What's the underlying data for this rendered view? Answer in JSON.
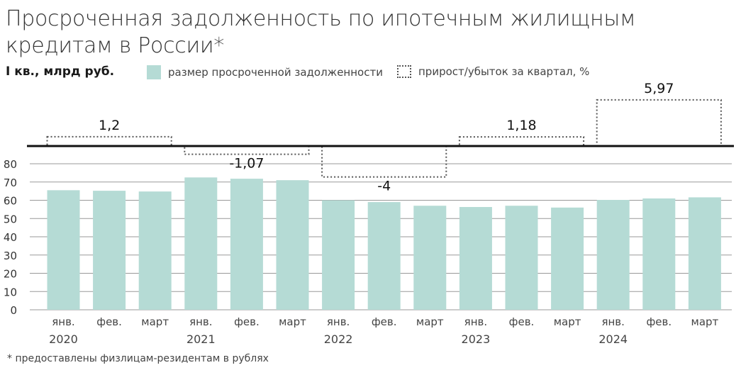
{
  "title": "Просроченная задолженность по ипотечным жилищным кредитам в России*",
  "subtitle": "I кв., млрд руб.",
  "legend": {
    "bars_label": "размер просроченной задолженности",
    "growth_label": "прирост/убыток за квартал, %"
  },
  "footnote": "* предоставлены физлицам-резидентам в рублях",
  "colors": {
    "bar": "#b5dbd5",
    "grid": "#999999",
    "baseline": "#111111",
    "dotted": "#555555"
  },
  "chart_data": {
    "type": "bar",
    "categories": [
      "янв.",
      "фев.",
      "март",
      "янв.",
      "фев.",
      "март",
      "янв.",
      "фев.",
      "март",
      "янв.",
      "фев.",
      "март",
      "янв.",
      "фев.",
      "март"
    ],
    "years": [
      "2020",
      "2021",
      "2022",
      "2023",
      "2024"
    ],
    "values": [
      65.5,
      65.2,
      64.8,
      72.5,
      71.8,
      71.0,
      60.0,
      59.0,
      57.0,
      56.3,
      57.0,
      56.0,
      60.2,
      61.0,
      61.6
    ],
    "yticks": [
      0,
      10,
      20,
      30,
      40,
      50,
      60,
      70,
      80
    ],
    "ylim": [
      0,
      80
    ],
    "quarter_change": [
      {
        "year": "2020",
        "value": 1.2,
        "label": "1,2"
      },
      {
        "year": "2021",
        "value": -1.07,
        "label": "-1,07"
      },
      {
        "year": "2022",
        "value": -4,
        "label": "-4"
      },
      {
        "year": "2023",
        "value": 1.18,
        "label": "1,18"
      },
      {
        "year": "2024",
        "value": 5.97,
        "label": "5,97"
      }
    ],
    "legend_position": "top",
    "grid": true
  }
}
